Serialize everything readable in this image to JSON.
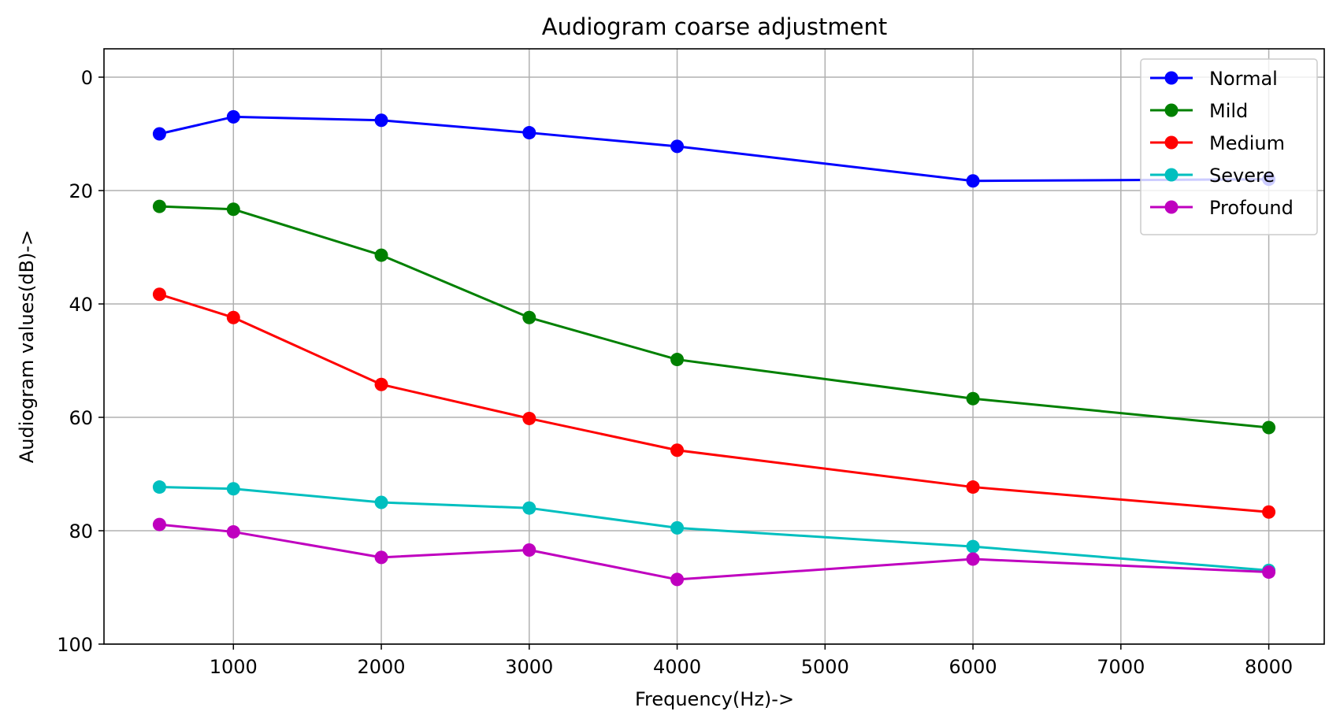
{
  "chart_data": {
    "type": "line",
    "title": "Audiogram coarse adjustment",
    "xlabel": "Frequency(Hz)->",
    "ylabel": "Audiogram values(dB)->",
    "x": [
      500,
      1000,
      2000,
      3000,
      4000,
      6000,
      8000
    ],
    "xlim": [
      125,
      8375
    ],
    "ylim": [
      100,
      -5
    ],
    "y_inverted": true,
    "x_ticks": [
      1000,
      2000,
      3000,
      4000,
      5000,
      6000,
      7000,
      8000
    ],
    "y_ticks": [
      0,
      20,
      40,
      60,
      80,
      100
    ],
    "grid": true,
    "legend_position": "top-right",
    "series": [
      {
        "name": "Normal",
        "color": "#0000ff",
        "values": [
          10,
          7,
          7.6,
          9.8,
          12.2,
          18.3,
          18
        ]
      },
      {
        "name": "Mild",
        "color": "#008000",
        "values": [
          22.8,
          23.3,
          31.4,
          42.4,
          49.8,
          56.7,
          61.8
        ]
      },
      {
        "name": "Medium",
        "color": "#ff0000",
        "values": [
          38.3,
          42.4,
          54.2,
          60.2,
          65.8,
          72.3,
          76.7
        ]
      },
      {
        "name": "Severe",
        "color": "#00bfbf",
        "values": [
          72.3,
          72.6,
          75,
          76,
          79.5,
          82.8,
          87
        ]
      },
      {
        "name": "Profound",
        "color": "#bf00bf",
        "values": [
          78.9,
          80.2,
          84.7,
          83.4,
          88.6,
          85,
          87.3
        ]
      }
    ]
  }
}
